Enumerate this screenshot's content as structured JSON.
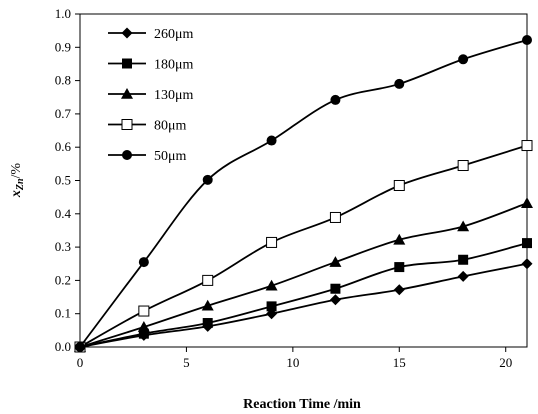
{
  "chart_data": {
    "type": "line",
    "xlabel": "Reaction Time /min",
    "ylabel_main": "x",
    "ylabel_sub": "Zn",
    "ylabel_unit": "/%",
    "xlim": [
      0,
      21
    ],
    "ylim": [
      0,
      1.0
    ],
    "xticks": [
      0,
      5,
      10,
      15,
      20
    ],
    "yticks": [
      0.0,
      0.1,
      0.2,
      0.3,
      0.4,
      0.5,
      0.6,
      0.7,
      0.8,
      0.9,
      1.0
    ],
    "legend_position": "top-left",
    "x": [
      0,
      3,
      6,
      9,
      12,
      15,
      18,
      21
    ],
    "series": [
      {
        "name": "260μm",
        "marker": "diamond",
        "values": [
          0.0,
          0.035,
          0.062,
          0.1,
          0.142,
          0.172,
          0.212,
          0.25
        ]
      },
      {
        "name": "180μm",
        "marker": "square-filled",
        "values": [
          0.0,
          0.04,
          0.072,
          0.122,
          0.175,
          0.24,
          0.262,
          0.312
        ]
      },
      {
        "name": "130μm",
        "marker": "triangle",
        "values": [
          0.0,
          0.06,
          0.124,
          0.184,
          0.255,
          0.322,
          0.362,
          0.432
        ]
      },
      {
        "name": "80μm",
        "marker": "square-open",
        "values": [
          0.0,
          0.108,
          0.2,
          0.314,
          0.389,
          0.485,
          0.545,
          0.605
        ]
      },
      {
        "name": "50μm",
        "marker": "circle",
        "values": [
          0.0,
          0.255,
          0.502,
          0.62,
          0.742,
          0.79,
          0.864,
          0.922
        ]
      }
    ]
  }
}
